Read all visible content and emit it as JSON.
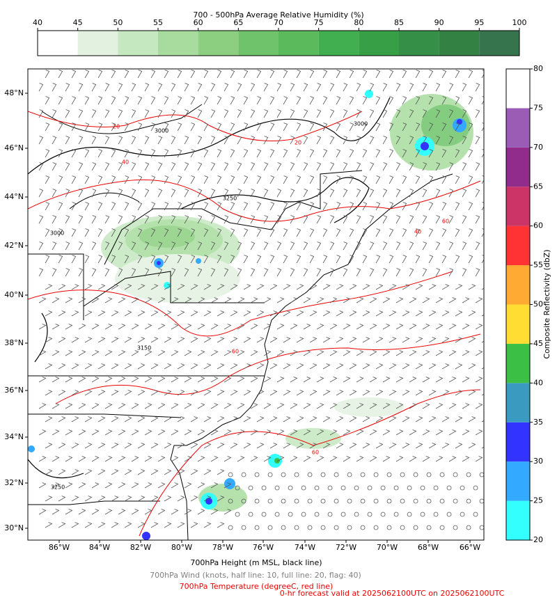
{
  "humidity_colorbar": {
    "title": "700 - 500hPa Average Relative Humidity (%)",
    "ticks": [
      40,
      45,
      50,
      55,
      60,
      65,
      70,
      75,
      80,
      85,
      90,
      95,
      100
    ],
    "colors": [
      "#ffffff",
      "#e3f2e0",
      "#c6e8c0",
      "#a8dc9e",
      "#8ccf80",
      "#6fc46b",
      "#5aba5c",
      "#41ae4f",
      "#37a047",
      "#358f46",
      "#348144",
      "#35744d"
    ]
  },
  "reflectivity_colorbar": {
    "label": "Composite Reflectivity (dbZ)",
    "ticks": [
      20,
      25,
      30,
      35,
      40,
      45,
      50,
      55,
      60,
      65,
      70,
      75,
      80
    ],
    "colors": [
      "#33ffff",
      "#33aaff",
      "#3333ff",
      "#3a9abf",
      "#3cbf45",
      "#ffdd33",
      "#ffaa33",
      "#ff3333",
      "#cc3366",
      "#912c8c",
      "#9a5cb4",
      "#ffffff"
    ]
  },
  "map": {
    "lat_labels": [
      "48°N",
      "46°N",
      "44°N",
      "42°N",
      "40°N",
      "38°N",
      "36°N",
      "34°N",
      "32°N",
      "30°N"
    ],
    "lon_labels": [
      "86°W",
      "84°W",
      "82°W",
      "80°W",
      "78°W",
      "76°W",
      "74°W",
      "72°W",
      "70°W",
      "68°W",
      "66°W"
    ],
    "contour_labels": [
      "3000",
      "3000",
      "3150",
      "3250",
      "3250",
      "3000",
      "20",
      "20",
      "40",
      "40",
      "60",
      "60",
      "60"
    ]
  },
  "footer": {
    "height": "700hPa Height (m MSL, black line)",
    "wind": "700hPa Wind (knots, half line: 10, full line: 20, flag: 40)",
    "temperature": "700hPa Temperature (degreeC, red line)",
    "valid": "0-hr forecast valid at 2025062100UTC on 2025062100UTC"
  }
}
